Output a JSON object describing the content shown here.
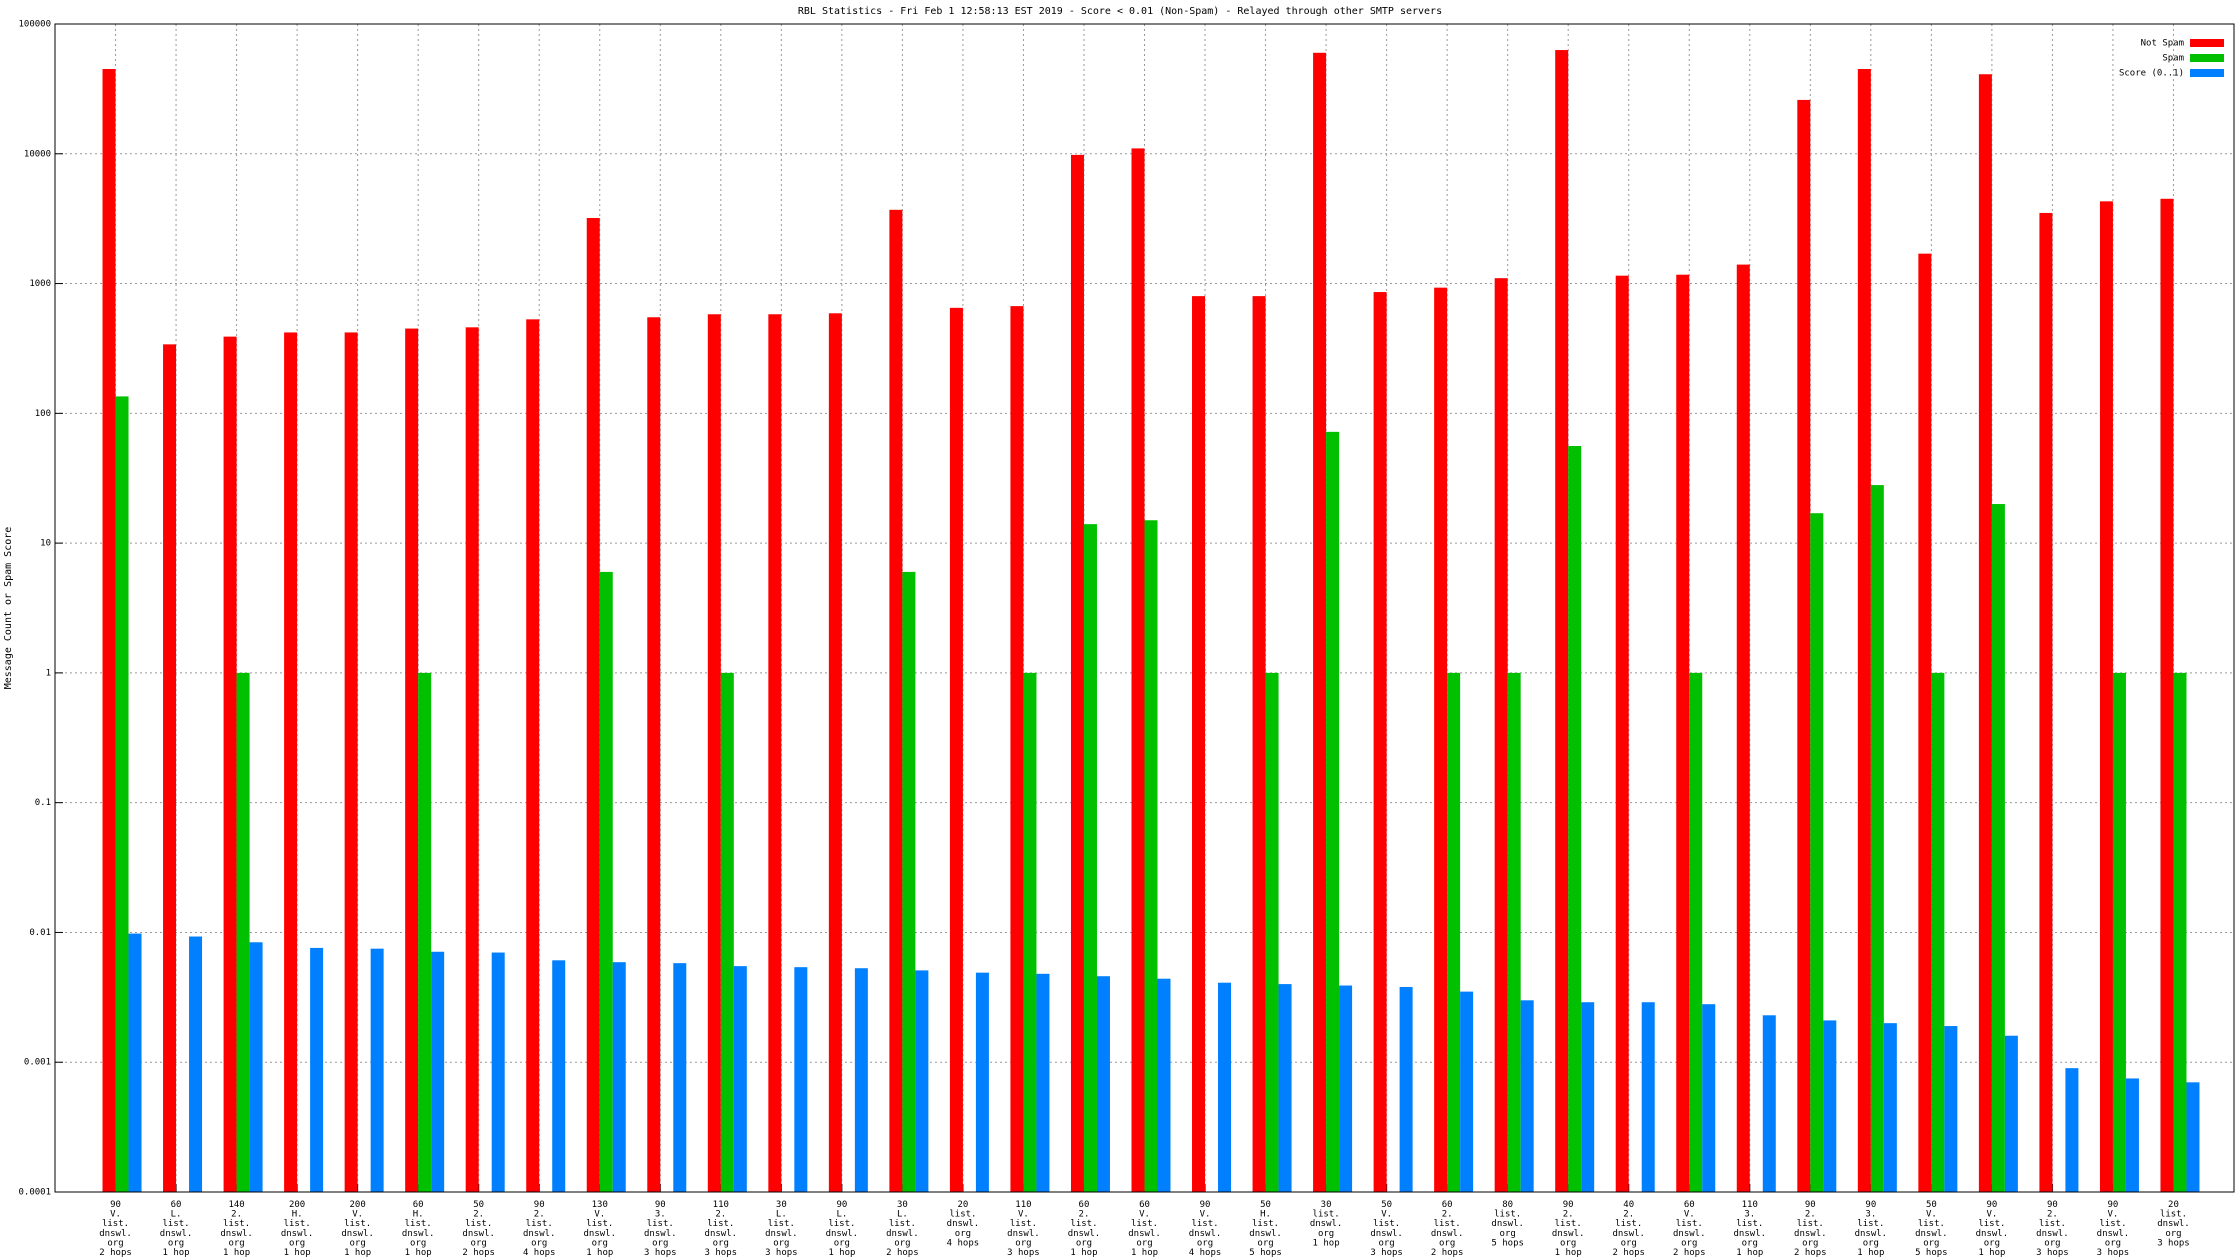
{
  "chart_data": {
    "type": "bar",
    "title": "RBL Statistics - Fri Feb  1 12:58:13 EST 2019 - Score < 0.01 (Non-Spam) - Relayed through other SMTP servers",
    "y_label": "Message Count or Spam Score",
    "log_scale": true,
    "grid": true,
    "legend": "upper right",
    "ylim": [
      0.0001,
      100000
    ],
    "yticks": [
      0.0001,
      0.001,
      0.01,
      0.1,
      1,
      10,
      100,
      1000,
      10000,
      100000
    ],
    "categories": [
      [
        "90",
        "V.",
        "list.",
        "dnswl.",
        "org",
        "2 hops"
      ],
      [
        "60",
        "L.",
        "list.",
        "dnswl.",
        "org",
        "1 hop"
      ],
      [
        "140",
        "2.",
        "list.",
        "dnswl.",
        "org",
        "1 hop"
      ],
      [
        "200",
        "H.",
        "list.",
        "dnswl.",
        "org",
        "1 hop"
      ],
      [
        "200",
        "V.",
        "list.",
        "dnswl.",
        "org",
        "1 hop"
      ],
      [
        "60",
        "H.",
        "list.",
        "dnswl.",
        "org",
        "1 hop"
      ],
      [
        "50",
        "2.",
        "list.",
        "dnswl.",
        "org",
        "2 hops"
      ],
      [
        "90",
        "2.",
        "list.",
        "dnswl.",
        "org",
        "4 hops"
      ],
      [
        "130",
        "V.",
        "list.",
        "dnswl.",
        "org",
        "1 hop"
      ],
      [
        "90",
        "3.",
        "list.",
        "dnswl.",
        "org",
        "3 hops"
      ],
      [
        "110",
        "2.",
        "list.",
        "dnswl.",
        "org",
        "3 hops"
      ],
      [
        "30",
        "L.",
        "list.",
        "dnswl.",
        "org",
        "3 hops"
      ],
      [
        "90",
        "L.",
        "list.",
        "dnswl.",
        "org",
        "1 hop"
      ],
      [
        "30",
        "L.",
        "list.",
        "dnswl.",
        "org",
        "2 hops"
      ],
      [
        "20",
        "list.",
        "dnswl.",
        "org",
        "4 hops"
      ],
      [
        "110",
        "V.",
        "list.",
        "dnswl.",
        "org",
        "3 hops"
      ],
      [
        "60",
        "2.",
        "list.",
        "dnswl.",
        "org",
        "1 hop"
      ],
      [
        "60",
        "V.",
        "list.",
        "dnswl.",
        "org",
        "1 hop"
      ],
      [
        "90",
        "V.",
        "list.",
        "dnswl.",
        "org",
        "4 hops"
      ],
      [
        "50",
        "H.",
        "list.",
        "dnswl.",
        "org",
        "5 hops"
      ],
      [
        "30",
        "list.",
        "dnswl.",
        "org",
        "1 hop"
      ],
      [
        "50",
        "V.",
        "list.",
        "dnswl.",
        "org",
        "3 hops"
      ],
      [
        "60",
        "2.",
        "list.",
        "dnswl.",
        "org",
        "2 hops"
      ],
      [
        "80",
        "list.",
        "dnswl.",
        "org",
        "5 hops"
      ],
      [
        "90",
        "2.",
        "list.",
        "dnswl.",
        "org",
        "1 hop"
      ],
      [
        "40",
        "2.",
        "list.",
        "dnswl.",
        "org",
        "2 hops"
      ],
      [
        "60",
        "V.",
        "list.",
        "dnswl.",
        "org",
        "2 hops"
      ],
      [
        "110",
        "3.",
        "list.",
        "dnswl.",
        "org",
        "1 hop"
      ],
      [
        "90",
        "2.",
        "list.",
        "dnswl.",
        "org",
        "2 hops"
      ],
      [
        "90",
        "3.",
        "list.",
        "dnswl.",
        "org",
        "1 hop"
      ],
      [
        "50",
        "V.",
        "list.",
        "dnswl.",
        "org",
        "5 hops"
      ],
      [
        "90",
        "V.",
        "list.",
        "dnswl.",
        "org",
        "1 hop"
      ],
      [
        "90",
        "2.",
        "list.",
        "dnswl.",
        "org",
        "3 hops"
      ],
      [
        "90",
        "V.",
        "list.",
        "dnswl.",
        "org",
        "3 hops"
      ],
      [
        "20",
        "list.",
        "dnswl.",
        "org",
        "3 hops"
      ]
    ],
    "series": [
      {
        "name": "Not Spam",
        "color": "#ff0000",
        "values": [
          45000,
          340,
          390,
          420,
          420,
          450,
          460,
          530,
          3200,
          550,
          580,
          580,
          590,
          3700,
          650,
          670,
          9800,
          11000,
          800,
          800,
          60000,
          860,
          930,
          1100,
          63000,
          1150,
          1170,
          1400,
          26000,
          45000,
          1700,
          41000,
          3500,
          4300,
          4500
        ]
      },
      {
        "name": "Spam",
        "color": "#00c000",
        "values": [
          135,
          null,
          1,
          null,
          null,
          1,
          null,
          null,
          6,
          null,
          1,
          null,
          null,
          6,
          null,
          1,
          14,
          15,
          null,
          1,
          72,
          null,
          1,
          1,
          56,
          null,
          1,
          null,
          17,
          28,
          1,
          20,
          null,
          1,
          1
        ]
      },
      {
        "name": "Score (0..1)",
        "color": "#0080ff",
        "values": [
          0.0098,
          0.0093,
          0.0084,
          0.0076,
          0.0075,
          0.0071,
          0.007,
          0.0061,
          0.0059,
          0.0058,
          0.0055,
          0.0054,
          0.0053,
          0.0051,
          0.0049,
          0.0048,
          0.0046,
          0.0044,
          0.0041,
          0.004,
          0.0039,
          0.0038,
          0.0035,
          0.003,
          0.0029,
          0.0029,
          0.0028,
          0.0023,
          0.0021,
          0.002,
          0.0019,
          0.0016,
          0.0009,
          0.00075,
          0.0007
        ]
      }
    ]
  }
}
